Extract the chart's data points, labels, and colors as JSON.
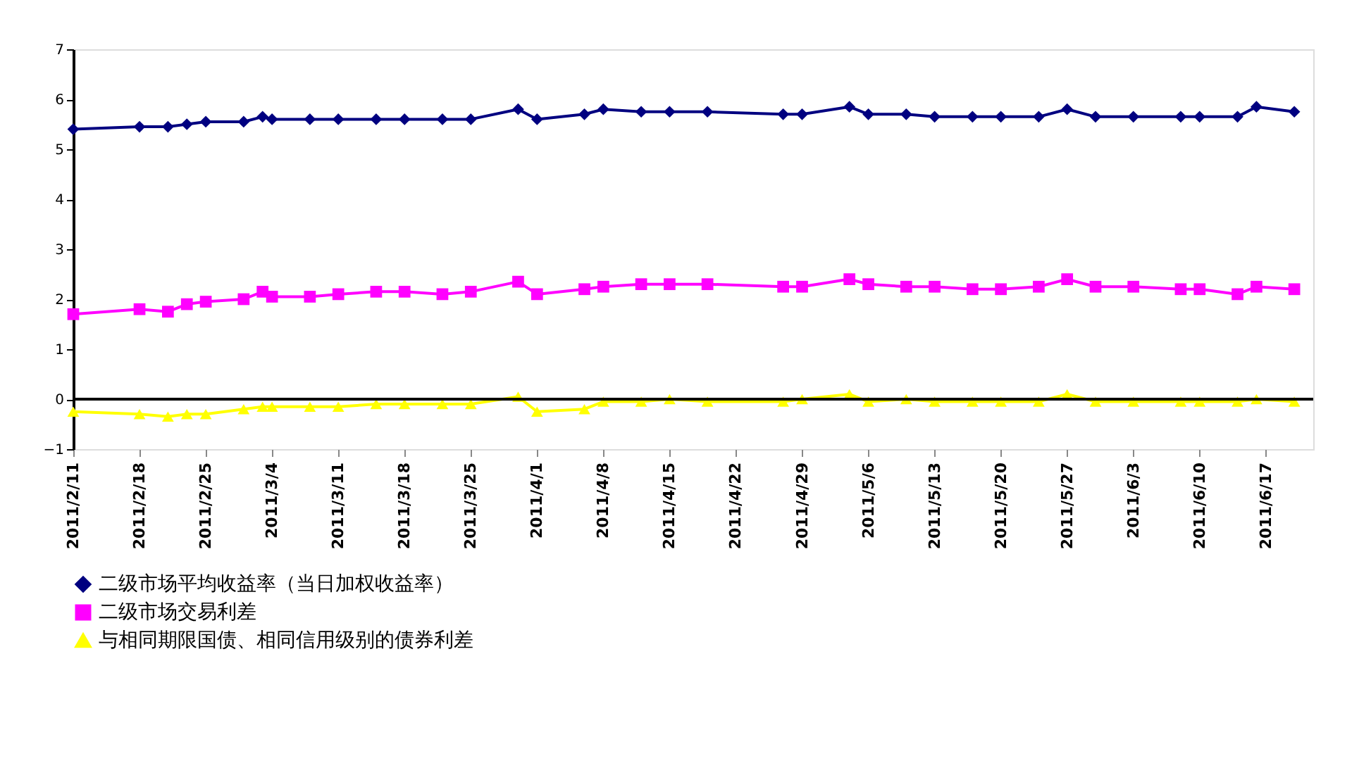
{
  "chart_data": {
    "type": "line",
    "x": [
      "2011-02-11",
      "2011-02-18",
      "2011-02-21",
      "2011-02-23",
      "2011-02-25",
      "2011-03-01",
      "2011-03-03",
      "2011-03-04",
      "2011-03-08",
      "2011-03-11",
      "2011-03-15",
      "2011-03-18",
      "2011-03-22",
      "2011-03-25",
      "2011-03-30",
      "2011-04-01",
      "2011-04-06",
      "2011-04-08",
      "2011-04-12",
      "2011-04-15",
      "2011-04-19",
      "2011-04-27",
      "2011-04-29",
      "2011-05-04",
      "2011-05-06",
      "2011-05-10",
      "2011-05-13",
      "2011-05-17",
      "2011-05-20",
      "2011-05-24",
      "2011-05-27",
      "2011-05-30",
      "2011-06-03",
      "2011-06-08",
      "2011-06-10",
      "2011-06-14",
      "2011-06-16",
      "2011-06-20"
    ],
    "series": [
      {
        "name": "二级市场平均收益率（当日加权收益率）",
        "color": "#000080",
        "marker": "diamond",
        "values": [
          5.4,
          5.45,
          5.45,
          5.5,
          5.55,
          5.55,
          5.65,
          5.6,
          5.6,
          5.6,
          5.6,
          5.6,
          5.6,
          5.6,
          5.8,
          5.6,
          5.7,
          5.8,
          5.75,
          5.75,
          5.75,
          5.7,
          5.7,
          5.85,
          5.7,
          5.7,
          5.65,
          5.65,
          5.65,
          5.65,
          5.8,
          5.65,
          5.65,
          5.65,
          5.65,
          5.65,
          5.85,
          5.75
        ]
      },
      {
        "name": "二级市场交易利差",
        "color": "#ff00ff",
        "marker": "square",
        "values": [
          1.7,
          1.8,
          1.75,
          1.9,
          1.95,
          2.0,
          2.15,
          2.05,
          2.05,
          2.1,
          2.15,
          2.15,
          2.1,
          2.15,
          2.35,
          2.1,
          2.2,
          2.25,
          2.3,
          2.3,
          2.3,
          2.25,
          2.25,
          2.4,
          2.3,
          2.25,
          2.25,
          2.2,
          2.2,
          2.25,
          2.4,
          2.25,
          2.25,
          2.2,
          2.2,
          2.1,
          2.25,
          2.2
        ]
      },
      {
        "name": "与相同期限国债、相同信用级别的债券利差",
        "color": "#ffff00",
        "marker": "triangle",
        "values": [
          -0.25,
          -0.3,
          -0.35,
          -0.3,
          -0.3,
          -0.2,
          -0.15,
          -0.15,
          -0.15,
          -0.15,
          -0.1,
          -0.1,
          -0.1,
          -0.1,
          0.05,
          -0.25,
          -0.2,
          -0.05,
          -0.05,
          0,
          -0.05,
          -0.05,
          0,
          0.1,
          -0.05,
          0,
          -0.05,
          -0.05,
          -0.05,
          -0.05,
          0.1,
          -0.05,
          -0.05,
          -0.05,
          -0.05,
          -0.05,
          0,
          -0.05
        ]
      }
    ],
    "ylim": [
      -1,
      7
    ],
    "yticks": [
      -1,
      0,
      1,
      2,
      3,
      4,
      5,
      6,
      7
    ],
    "xlim": [
      "2011-02-11",
      "2011-06-22"
    ],
    "xticks": [
      {
        "value": "2011-02-11",
        "label": "2011/2/11"
      },
      {
        "value": "2011-02-18",
        "label": "2011/2/18"
      },
      {
        "value": "2011-02-25",
        "label": "2011/2/25"
      },
      {
        "value": "2011-03-04",
        "label": "2011/3/4"
      },
      {
        "value": "2011-03-11",
        "label": "2011/3/11"
      },
      {
        "value": "2011-03-18",
        "label": "2011/3/18"
      },
      {
        "value": "2011-03-25",
        "label": "2011/3/25"
      },
      {
        "value": "2011-04-01",
        "label": "2011/4/1"
      },
      {
        "value": "2011-04-08",
        "label": "2011/4/8"
      },
      {
        "value": "2011-04-15",
        "label": "2011/4/15"
      },
      {
        "value": "2011-04-22",
        "label": "2011/4/22"
      },
      {
        "value": "2011-04-29",
        "label": "2011/4/29"
      },
      {
        "value": "2011-05-06",
        "label": "2011/5/6"
      },
      {
        "value": "2011-05-13",
        "label": "2011/5/13"
      },
      {
        "value": "2011-05-20",
        "label": "2011/5/20"
      },
      {
        "value": "2011-05-27",
        "label": "2011/5/27"
      },
      {
        "value": "2011-06-03",
        "label": "2011/6/3"
      },
      {
        "value": "2011-06-10",
        "label": "2011/6/10"
      },
      {
        "value": "2011-06-17",
        "label": "2011/6/17"
      }
    ],
    "ref_lines": [
      {
        "axis": "y",
        "value": 0,
        "color": "#000000"
      }
    ],
    "grid": false,
    "legend": "bottom",
    "line_style": "solid"
  }
}
